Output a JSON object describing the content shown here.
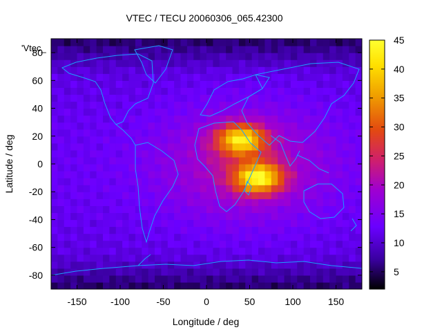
{
  "chart_data": {
    "type": "heatmap",
    "title": "VTEC / TECU 20060306_065.42300",
    "xlabel": "Longitude / deg",
    "ylabel": "Latitude / deg",
    "legend_label": "'Vtec_",
    "xlim": [
      -180,
      180
    ],
    "ylim": [
      -90,
      90
    ],
    "x_ticks": [
      "-150",
      "-100",
      "-50",
      "0",
      "50",
      "100",
      "150"
    ],
    "x_tick_values": [
      -150,
      -100,
      -50,
      0,
      50,
      100,
      150
    ],
    "y_ticks": [
      "-80",
      "-60",
      "-40",
      "-20",
      "0",
      "20",
      "40",
      "60",
      "80"
    ],
    "y_tick_values": [
      -80,
      -60,
      -40,
      -20,
      0,
      20,
      40,
      60,
      80
    ],
    "colorbar": {
      "ticks": [
        "5",
        "10",
        "15",
        "20",
        "25",
        "30",
        "35",
        "40",
        "45"
      ],
      "tick_values": [
        5,
        10,
        15,
        20,
        25,
        30,
        35,
        40,
        45
      ],
      "range": [
        2,
        45
      ],
      "palette": "black-blue-purple-red-orange-yellow"
    },
    "grid": false,
    "features": {
      "equatorial_anomaly_crests": [
        {
          "lon": 40,
          "lat": 18,
          "vtec": 44
        },
        {
          "lon": 60,
          "lat": -10,
          "vtec": 45
        }
      ],
      "background_vtec": 10
    }
  }
}
